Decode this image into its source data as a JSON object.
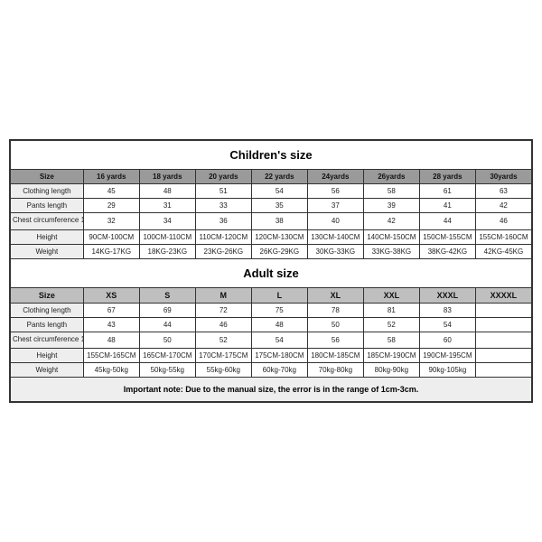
{
  "children": {
    "title": "Children's size",
    "header": [
      "Size",
      "16 yards",
      "18 yards",
      "20 yards",
      "22 yards",
      "24yards",
      "26yards",
      "28 yards",
      "30yards"
    ],
    "rows": [
      {
        "label": "Clothing length",
        "cells": [
          "45",
          "48",
          "51",
          "54",
          "56",
          "58",
          "61",
          "63"
        ]
      },
      {
        "label": "Pants length",
        "cells": [
          "29",
          "31",
          "33",
          "35",
          "37",
          "39",
          "41",
          "42"
        ]
      },
      {
        "label": "Chest circumference 1/2",
        "cells": [
          "32",
          "34",
          "36",
          "38",
          "40",
          "42",
          "44",
          "46"
        ]
      },
      {
        "label": "Height",
        "cells": [
          "90CM-100CM",
          "100CM-110CM",
          "110CM-120CM",
          "120CM-130CM",
          "130CM-140CM",
          "140CM-150CM",
          "150CM-155CM",
          "155CM-160CM"
        ]
      },
      {
        "label": "Weight",
        "cells": [
          "14KG-17KG",
          "18KG-23KG",
          "23KG-26KG",
          "26KG-29KG",
          "30KG-33KG",
          "33KG-38KG",
          "38KG-42KG",
          "42KG-45KG"
        ]
      }
    ]
  },
  "adult": {
    "title": "Adult size",
    "header": [
      "Size",
      "XS",
      "S",
      "M",
      "L",
      "XL",
      "XXL",
      "XXXL",
      "XXXXL"
    ],
    "rows": [
      {
        "label": "Clothing length",
        "cells": [
          "67",
          "69",
          "72",
          "75",
          "78",
          "81",
          "83",
          ""
        ]
      },
      {
        "label": "Pants length",
        "cells": [
          "43",
          "44",
          "46",
          "48",
          "50",
          "52",
          "54",
          ""
        ]
      },
      {
        "label": "Chest circumference 1/2",
        "cells": [
          "48",
          "50",
          "52",
          "54",
          "56",
          "58",
          "60",
          ""
        ]
      },
      {
        "label": "Height",
        "cells": [
          "155CM-165CM",
          "165CM-170CM",
          "170CM-175CM",
          "175CM-180CM",
          "180CM-185CM",
          "185CM-190CM",
          "190CM-195CM",
          ""
        ]
      },
      {
        "label": "Weight",
        "cells": [
          "45kg-50kg",
          "50kg-55kg",
          "55kg-60kg",
          "60kg-70kg",
          "70kg-80kg",
          "80kg-90kg",
          "90kg-105kg",
          ""
        ]
      }
    ]
  },
  "note": "Important note: Due to the manual size, the error is in the range of 1cm-3cm.",
  "styling": {
    "header_bg_children": "#9a9a9a",
    "header_bg_adult": "#bfbfbf",
    "rowlabel_bg": "#eeeeee",
    "note_bg": "#eeeeee",
    "border_color": "#333333",
    "title_fontsize": 13,
    "cell_fontsize": 8,
    "note_fontsize": 9,
    "font_family": "Arial"
  }
}
